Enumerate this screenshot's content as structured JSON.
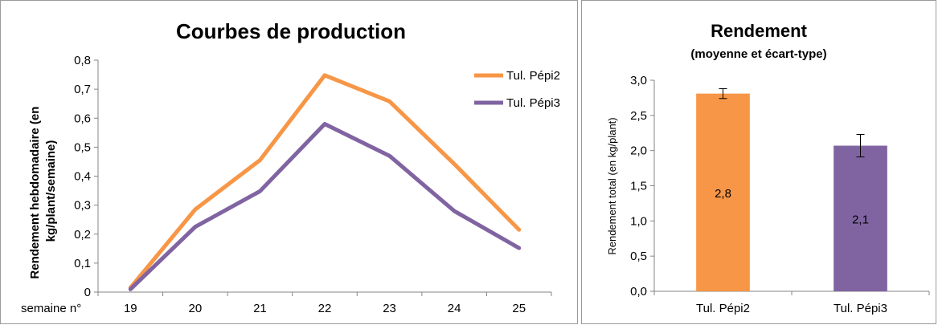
{
  "chart_data": [
    {
      "type": "line",
      "title": "Courbes de production",
      "xlabel": "semaine n°",
      "ylabel": "Rendement hebdomadaire (en kg/plant/semaine)",
      "ylabel_lines": [
        "Rendement hebdomadaire (en",
        "kg/plant/semaine)"
      ],
      "categories": [
        "19",
        "20",
        "21",
        "22",
        "23",
        "24",
        "25"
      ],
      "yticks": [
        "0",
        "0,1",
        "0,2",
        "0,3",
        "0,4",
        "0,5",
        "0,6",
        "0,7",
        "0,8"
      ],
      "ylim": [
        0,
        0.8
      ],
      "grid": false,
      "legend": "top-right",
      "series": [
        {
          "name": "Tul. Pépi2",
          "color": "#F79646",
          "values": [
            0.015,
            0.285,
            0.455,
            0.748,
            0.658,
            0.442,
            0.215
          ]
        },
        {
          "name": "Tul. Pépi3",
          "color": "#8064A2",
          "values": [
            0.01,
            0.225,
            0.348,
            0.58,
            0.47,
            0.28,
            0.152
          ]
        }
      ]
    },
    {
      "type": "bar",
      "title": "Rendement",
      "subtitle": "(moyenne et écart-type)",
      "xlabel": "",
      "ylabel": "Rendement total (en kg/plant)",
      "categories": [
        "Tul. Pépi2",
        "Tul. Pépi3"
      ],
      "values": [
        2.81,
        2.07
      ],
      "data_labels": [
        "2,8",
        "2,1"
      ],
      "error": [
        0.07,
        0.16
      ],
      "colors": [
        "#F79646",
        "#8064A2"
      ],
      "yticks": [
        "0,0",
        "0,5",
        "1,0",
        "1,5",
        "2,0",
        "2,5",
        "3,0"
      ],
      "ylim": [
        0,
        3.0
      ],
      "grid": false
    }
  ]
}
